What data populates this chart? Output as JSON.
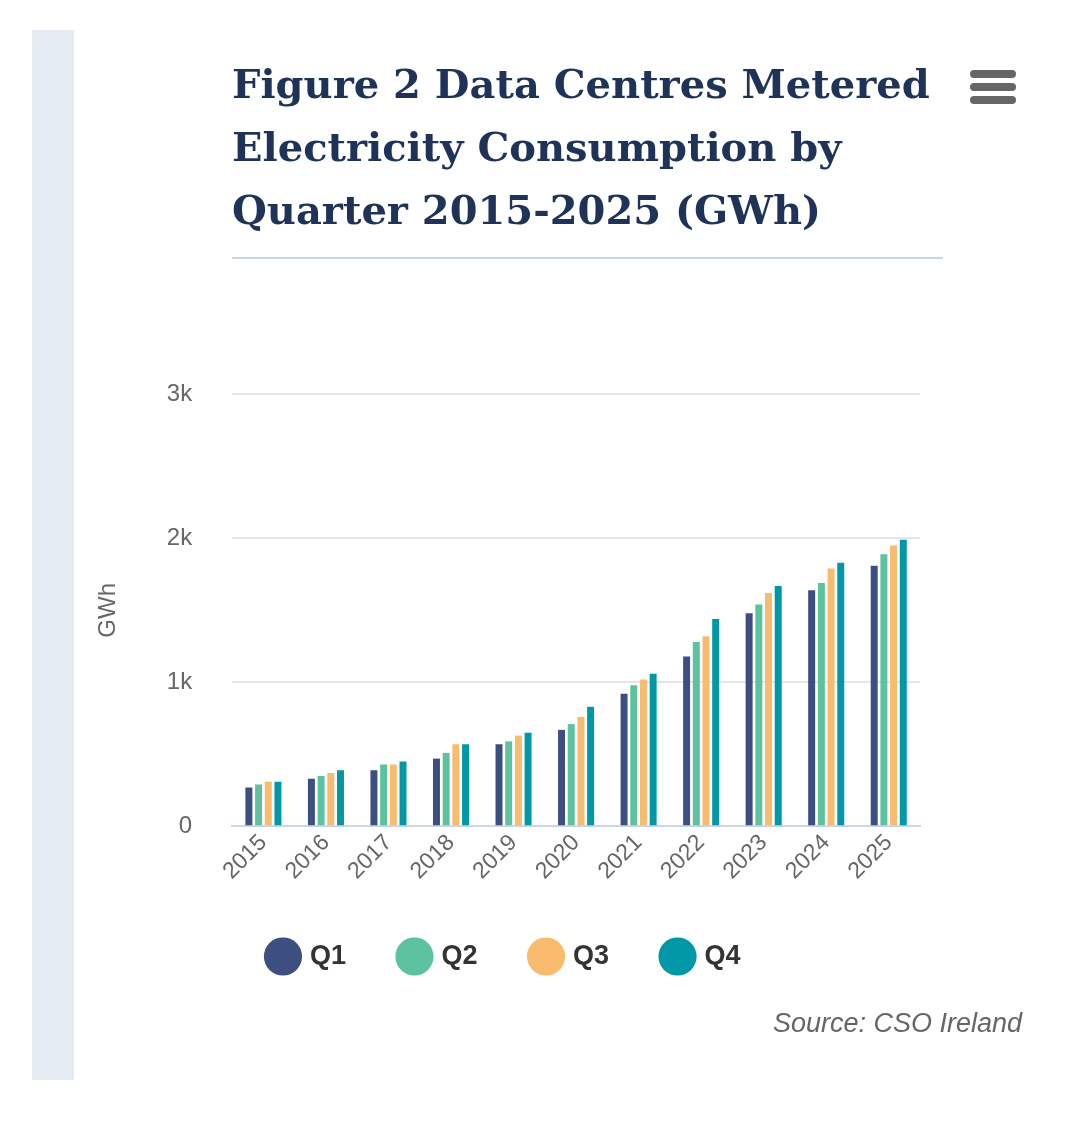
{
  "chart_data": {
    "type": "bar",
    "title": "Figure 2 Data Centres Metered Electricity Consumption by Quarter 2015-2025 (GWh)",
    "ylabel": "GWh",
    "categories": [
      "2015",
      "2016",
      "2017",
      "2018",
      "2019",
      "2020",
      "2021",
      "2022",
      "2023",
      "2024",
      "2025"
    ],
    "series": [
      {
        "name": "Q1",
        "color": "#3d4f80",
        "values": [
          270,
          330,
          390,
          470,
          570,
          670,
          920,
          1180,
          1480,
          1640,
          1810
        ]
      },
      {
        "name": "Q2",
        "color": "#5cc2a0",
        "values": [
          290,
          350,
          430,
          510,
          590,
          710,
          980,
          1280,
          1540,
          1690,
          1890
        ]
      },
      {
        "name": "Q3",
        "color": "#f9bb6d",
        "values": [
          310,
          370,
          430,
          570,
          630,
          760,
          1020,
          1320,
          1620,
          1790,
          1950
        ]
      },
      {
        "name": "Q4",
        "color": "#0097a7",
        "values": [
          310,
          390,
          450,
          570,
          650,
          830,
          1060,
          1440,
          1670,
          1830,
          1990
        ]
      }
    ],
    "ylim": [
      0,
      3000
    ],
    "yticks": [
      {
        "value": 0,
        "label": "0"
      },
      {
        "value": 1000,
        "label": "1k"
      },
      {
        "value": 2000,
        "label": "2k"
      },
      {
        "value": 3000,
        "label": "3k"
      }
    ],
    "grid": "y",
    "legend": "bottom",
    "annotations": [
      "Source: CSO Ireland"
    ]
  }
}
